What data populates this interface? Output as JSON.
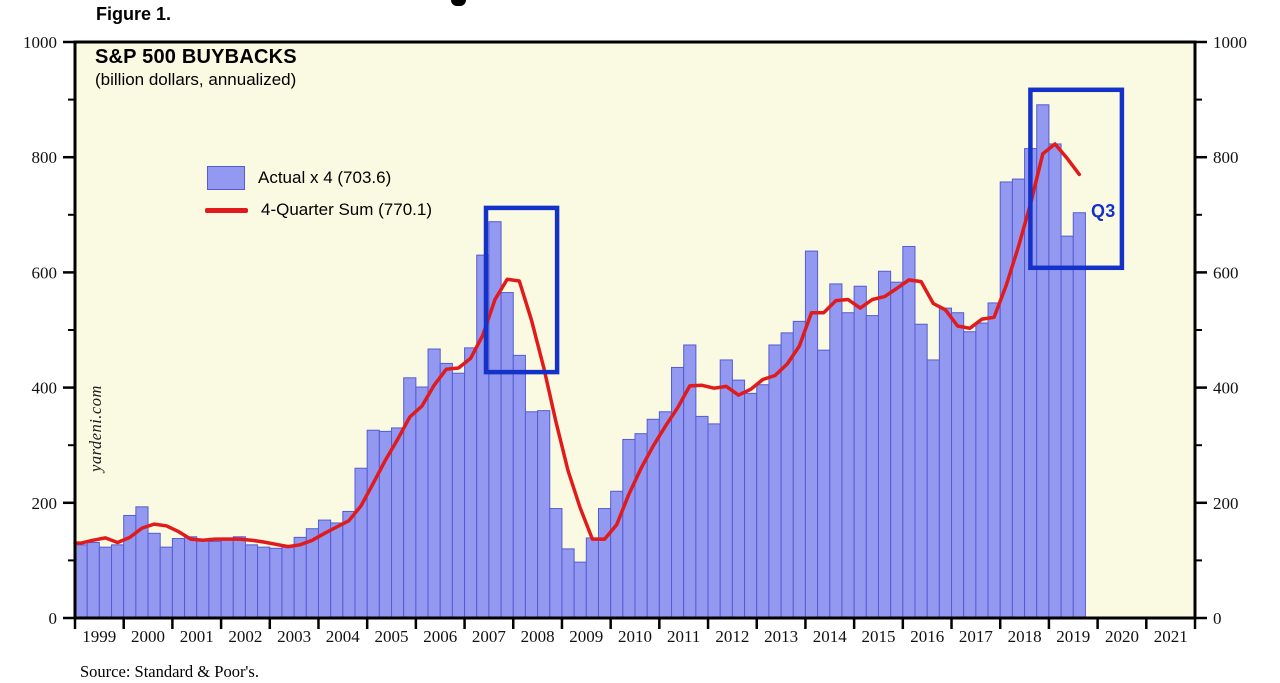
{
  "figure_label": "Figure 1.",
  "title": "S&P 500 BUYBACKS",
  "subtitle": "(billion dollars, annualized)",
  "watermark": "yardeni.com",
  "source": "Source: Standard & Poor's.",
  "legend": [
    {
      "label": "Actual x 4 (703.6)",
      "style": "bar"
    },
    {
      "label": "4-Quarter Sum (770.1)",
      "style": "line"
    }
  ],
  "colors": {
    "plot_background": "#FAF9E1",
    "bar_fill": "#9398F0",
    "bar_border": "#565CD0",
    "line_red": "#E11B1B",
    "annotation_blue": "#1432C8",
    "axis_black": "#000000"
  },
  "annotations": {
    "q3": {
      "label": "Q3",
      "year": 2020.1,
      "value": 705
    },
    "boxes": [
      {
        "x0_year": 2007.44,
        "x1_year": 2008.9,
        "v0": 427,
        "v1": 712
      },
      {
        "x0_year": 2018.62,
        "x1_year": 2020.5,
        "v0": 608,
        "v1": 917
      }
    ]
  },
  "chart_data": {
    "type": "bar",
    "title": "S&P 500 BUYBACKS",
    "subtitle": "(billion dollars, annualized)",
    "legend_position": "upper-left-inside",
    "grid": false,
    "x_axis": {
      "start_year": 1999,
      "end_year_boundary": 2022,
      "year_labels": [
        "1999",
        "2000",
        "2001",
        "2002",
        "2003",
        "2004",
        "2005",
        "2006",
        "2007",
        "2008",
        "2009",
        "2010",
        "2011",
        "2012",
        "2013",
        "2014",
        "2015",
        "2016",
        "2017",
        "2018",
        "2019",
        "2020",
        "2021"
      ]
    },
    "y_axis": {
      "min": 0,
      "max": 1000,
      "major_ticks": [
        0,
        200,
        400,
        600,
        800,
        1000
      ],
      "minor_ticks": [
        100,
        300,
        500,
        700,
        900
      ],
      "labels_on": "both-sides"
    },
    "quarters_start": "1999Q1",
    "quarters_end": "2019Q3",
    "series": [
      {
        "name": "Actual x 4",
        "latest": 703.6,
        "style": "bar",
        "values": [
          127,
          131,
          123,
          127,
          178,
          193,
          147,
          123,
          138,
          141,
          137,
          133,
          139,
          141,
          127,
          123,
          121,
          123,
          140,
          155,
          170,
          165,
          185,
          260,
          326,
          324,
          330,
          417,
          401,
          467,
          442,
          425,
          469,
          630,
          688,
          565,
          456,
          358,
          360,
          190,
          120,
          97,
          139,
          190,
          220,
          310,
          320,
          345,
          358,
          435,
          474,
          350,
          337,
          448,
          413,
          390,
          405,
          474,
          495,
          515,
          637,
          465,
          580,
          530,
          576,
          525,
          602,
          583,
          645,
          510,
          448,
          538,
          530,
          497,
          512,
          547,
          757,
          762,
          815,
          891,
          823,
          663,
          703.6
        ]
      },
      {
        "name": "4-Quarter Sum",
        "latest": 770.1,
        "style": "line",
        "values": [
          130,
          135,
          139,
          131,
          140,
          156,
          163,
          160,
          150,
          137,
          135,
          137,
          137,
          137,
          135,
          132,
          128,
          124,
          127,
          135,
          147,
          158,
          169,
          195,
          234,
          274,
          310,
          349,
          368,
          404,
          432,
          434,
          451,
          491,
          553,
          588,
          585,
          517,
          435,
          341,
          256,
          191,
          137,
          137,
          162,
          215,
          260,
          299,
          333,
          365,
          403,
          404,
          399,
          402,
          387,
          397,
          414,
          421,
          441,
          472,
          530,
          530,
          551,
          553,
          538,
          553,
          558,
          572,
          587,
          584,
          546,
          535,
          507,
          503,
          519,
          522,
          578,
          645,
          720,
          806,
          823,
          798,
          770.1
        ]
      }
    ]
  }
}
